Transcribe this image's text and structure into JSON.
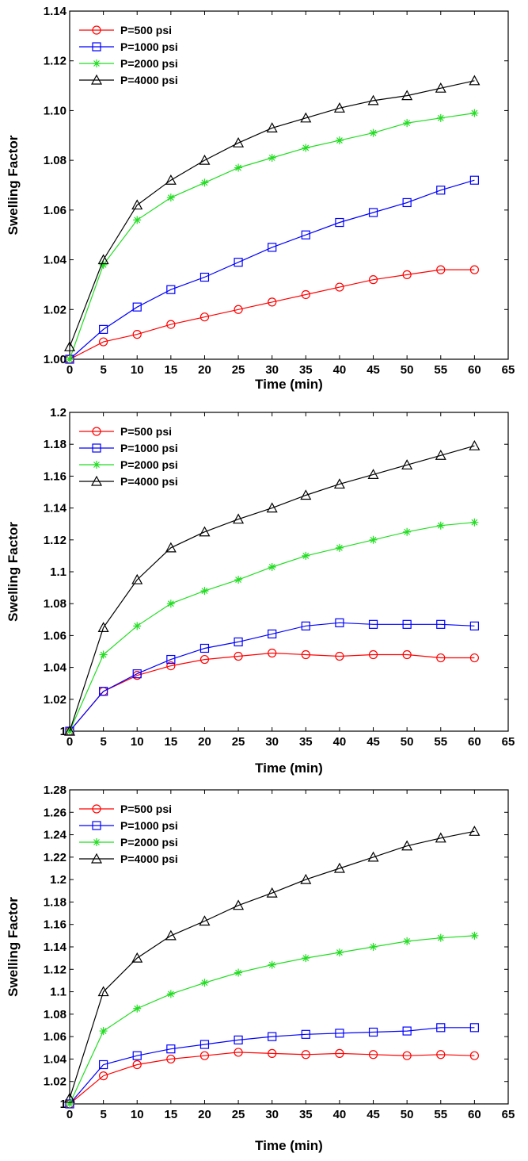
{
  "chart_data": [
    {
      "type": "line",
      "xlabel": "Time (min)",
      "ylabel": "Swelling Factor",
      "xlim": [
        0,
        65
      ],
      "ylim": [
        1.0,
        1.14
      ],
      "xticks": [
        "0",
        "5",
        "10",
        "15",
        "20",
        "25",
        "30",
        "35",
        "40",
        "45",
        "50",
        "55",
        "60",
        "65"
      ],
      "yticks": [
        "1.00",
        "1.02",
        "1.04",
        "1.06",
        "1.08",
        "1.10",
        "1.12",
        "1.14"
      ],
      "legend_position": "top-left",
      "series": [
        {
          "name": "P=500 psi",
          "color": "#ff0000",
          "marker": "circle",
          "x": [
            0,
            5,
            10,
            15,
            20,
            25,
            30,
            35,
            40,
            45,
            50,
            55,
            60
          ],
          "y": [
            1.0,
            1.007,
            1.01,
            1.014,
            1.017,
            1.02,
            1.023,
            1.026,
            1.029,
            1.032,
            1.034,
            1.036,
            1.036
          ]
        },
        {
          "name": "P=1000 psi",
          "color": "#0000ff",
          "marker": "square",
          "x": [
            0,
            5,
            10,
            15,
            20,
            25,
            30,
            35,
            40,
            45,
            50,
            55,
            60
          ],
          "y": [
            1.0,
            1.012,
            1.021,
            1.028,
            1.033,
            1.039,
            1.045,
            1.05,
            1.055,
            1.059,
            1.063,
            1.068,
            1.072
          ]
        },
        {
          "name": "P=2000 psi",
          "color": "#22dd22",
          "marker": "asterisk",
          "x": [
            0,
            5,
            10,
            15,
            20,
            25,
            30,
            35,
            40,
            45,
            50,
            55,
            60
          ],
          "y": [
            1.0,
            1.038,
            1.056,
            1.065,
            1.071,
            1.077,
            1.081,
            1.085,
            1.088,
            1.091,
            1.095,
            1.097,
            1.099
          ]
        },
        {
          "name": "P=4000 psi",
          "color": "#000000",
          "marker": "triangle",
          "x": [
            0,
            5,
            10,
            15,
            20,
            25,
            30,
            35,
            40,
            45,
            50,
            55,
            60
          ],
          "y": [
            1.005,
            1.04,
            1.062,
            1.072,
            1.08,
            1.087,
            1.093,
            1.097,
            1.101,
            1.104,
            1.106,
            1.109,
            1.112
          ]
        }
      ]
    },
    {
      "type": "line",
      "xlabel": "Time (min)",
      "ylabel": "Swelling Factor",
      "xlim": [
        0,
        65
      ],
      "ylim": [
        1.0,
        1.2
      ],
      "xticks": [
        "0",
        "5",
        "10",
        "15",
        "20",
        "25",
        "30",
        "35",
        "40",
        "45",
        "50",
        "55",
        "60",
        "65"
      ],
      "yticks": [
        "1",
        "1.02",
        "1.04",
        "1.06",
        "1.08",
        "1.1",
        "1.12",
        "1.14",
        "1.16",
        "1.18",
        "1.2"
      ],
      "legend_position": "top-left",
      "series": [
        {
          "name": "P=500 psi",
          "color": "#ff0000",
          "marker": "circle",
          "x": [
            0,
            5,
            10,
            15,
            20,
            25,
            30,
            35,
            40,
            45,
            50,
            55,
            60
          ],
          "y": [
            1.0,
            1.025,
            1.035,
            1.041,
            1.045,
            1.047,
            1.049,
            1.048,
            1.047,
            1.048,
            1.048,
            1.046,
            1.046
          ]
        },
        {
          "name": "P=1000 psi",
          "color": "#0000ff",
          "marker": "square",
          "x": [
            0,
            5,
            10,
            15,
            20,
            25,
            30,
            35,
            40,
            45,
            50,
            55,
            60
          ],
          "y": [
            1.0,
            1.025,
            1.036,
            1.045,
            1.052,
            1.056,
            1.061,
            1.066,
            1.068,
            1.067,
            1.067,
            1.067,
            1.066
          ]
        },
        {
          "name": "P=2000 psi",
          "color": "#22dd22",
          "marker": "asterisk",
          "x": [
            0,
            5,
            10,
            15,
            20,
            25,
            30,
            35,
            40,
            45,
            50,
            55,
            60
          ],
          "y": [
            1.0,
            1.048,
            1.066,
            1.08,
            1.088,
            1.095,
            1.103,
            1.11,
            1.115,
            1.12,
            1.125,
            1.129,
            1.131
          ]
        },
        {
          "name": "P=4000 psi",
          "color": "#000000",
          "marker": "triangle",
          "x": [
            0,
            5,
            10,
            15,
            20,
            25,
            30,
            35,
            40,
            45,
            50,
            55,
            60
          ],
          "y": [
            1.0,
            1.065,
            1.095,
            1.115,
            1.125,
            1.133,
            1.14,
            1.148,
            1.155,
            1.161,
            1.167,
            1.173,
            1.179
          ]
        }
      ]
    },
    {
      "type": "line",
      "xlabel": "Time (min)",
      "ylabel": "Swelling Factor",
      "xlim": [
        0,
        65
      ],
      "ylim": [
        1.0,
        1.28
      ],
      "xticks": [
        "0",
        "5",
        "10",
        "15",
        "20",
        "25",
        "30",
        "35",
        "40",
        "45",
        "50",
        "55",
        "60",
        "65"
      ],
      "yticks": [
        "1",
        "1.02",
        "1.04",
        "1.06",
        "1.08",
        "1.1",
        "1.12",
        "1.14",
        "1.16",
        "1.18",
        "1.2",
        "1.22",
        "1.24",
        "1.26",
        "1.28"
      ],
      "legend_position": "top-left",
      "series": [
        {
          "name": "P=500 psi",
          "color": "#ff0000",
          "marker": "circle",
          "x": [
            0,
            5,
            10,
            15,
            20,
            25,
            30,
            35,
            40,
            45,
            50,
            55,
            60
          ],
          "y": [
            1.0,
            1.025,
            1.035,
            1.04,
            1.043,
            1.046,
            1.045,
            1.044,
            1.045,
            1.044,
            1.043,
            1.044,
            1.043
          ]
        },
        {
          "name": "P=1000 psi",
          "color": "#0000ff",
          "marker": "square",
          "x": [
            0,
            5,
            10,
            15,
            20,
            25,
            30,
            35,
            40,
            45,
            50,
            55,
            60
          ],
          "y": [
            1.0,
            1.035,
            1.043,
            1.049,
            1.053,
            1.057,
            1.06,
            1.062,
            1.063,
            1.064,
            1.065,
            1.068,
            1.068
          ]
        },
        {
          "name": "P=2000 psi",
          "color": "#22dd22",
          "marker": "asterisk",
          "x": [
            0,
            5,
            10,
            15,
            20,
            25,
            30,
            35,
            40,
            45,
            50,
            55,
            60
          ],
          "y": [
            1.0,
            1.065,
            1.085,
            1.098,
            1.108,
            1.117,
            1.124,
            1.13,
            1.135,
            1.14,
            1.145,
            1.148,
            1.15
          ]
        },
        {
          "name": "P=4000 psi",
          "color": "#000000",
          "marker": "triangle",
          "x": [
            0,
            5,
            10,
            15,
            20,
            25,
            30,
            35,
            40,
            45,
            50,
            55,
            60
          ],
          "y": [
            1.005,
            1.1,
            1.13,
            1.15,
            1.163,
            1.177,
            1.188,
            1.2,
            1.21,
            1.22,
            1.23,
            1.237,
            1.243
          ]
        }
      ]
    }
  ]
}
